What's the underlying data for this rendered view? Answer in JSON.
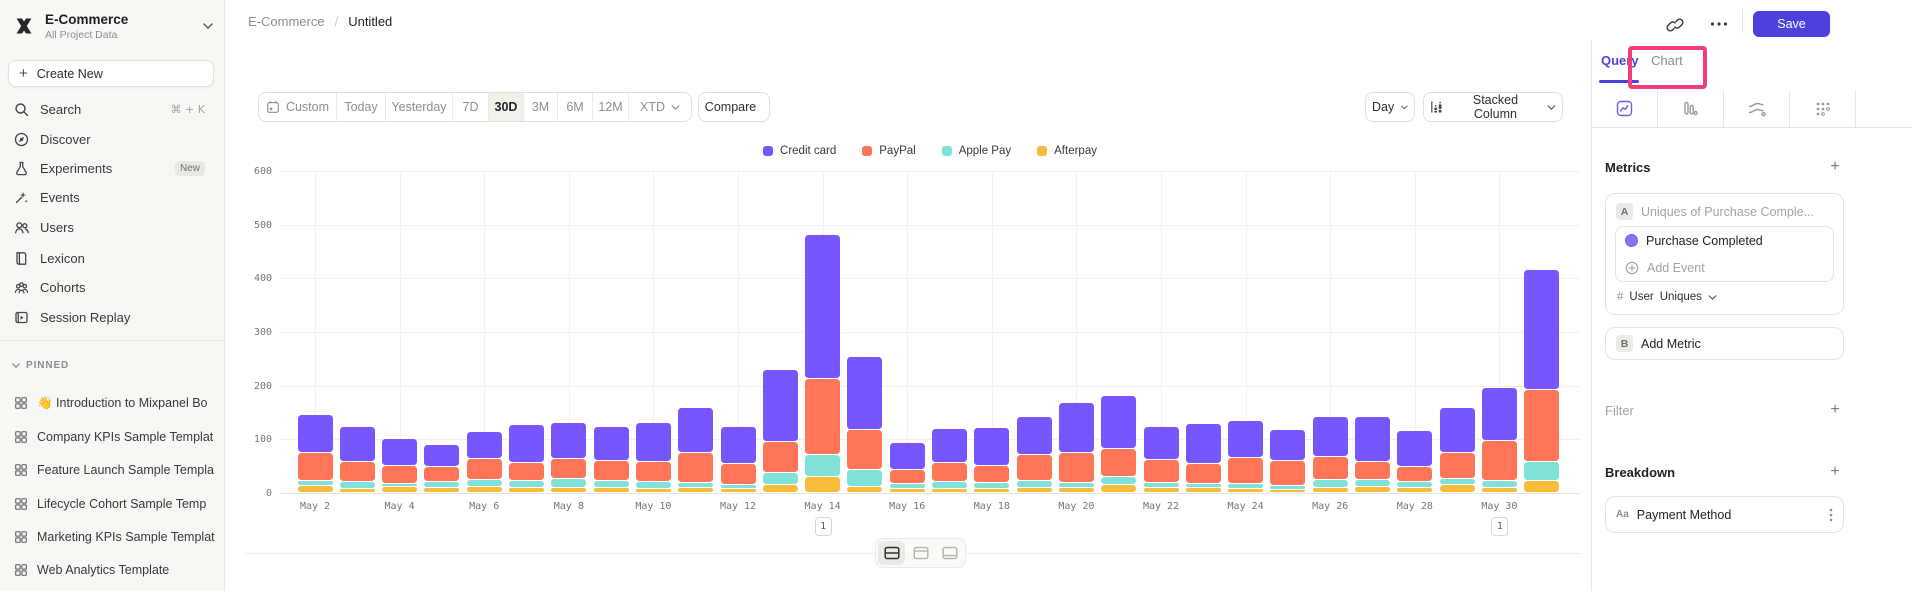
{
  "sidebar": {
    "project": {
      "name": "E-Commerce",
      "subtitle": "All Project Data"
    },
    "create_new": "Create New",
    "nav": [
      {
        "label": "Search",
        "shortcut": "⌘ + K"
      },
      {
        "label": "Discover"
      },
      {
        "label": "Experiments",
        "badge": "New"
      },
      {
        "label": "Events"
      },
      {
        "label": "Users"
      },
      {
        "label": "Lexicon"
      },
      {
        "label": "Cohorts"
      },
      {
        "label": "Session Replay"
      }
    ],
    "pinned_header": "PINNED",
    "pinned": [
      "👋 Introduction to Mixpanel Bo",
      "Company KPIs Sample Templat",
      "Feature Launch Sample Templa",
      "Lifecycle Cohort Sample Temp",
      "Marketing KPIs Sample Templat",
      "Web Analytics Template"
    ]
  },
  "header": {
    "breadcrumb_project": "E-Commerce",
    "breadcrumb_sep": "/",
    "breadcrumb_page": "Untitled",
    "save_label": "Save"
  },
  "ui": {
    "plus": "+"
  },
  "toolbar": {
    "ranges": [
      "Custom",
      "Today",
      "Yesterday",
      "7D",
      "30D",
      "3M",
      "6M",
      "12M",
      "XTD"
    ],
    "active_range": "30D",
    "compare_label": "Compare",
    "granularity_label": "Day",
    "chart_type_label": "Stacked Column"
  },
  "panel": {
    "tab_query": "Query",
    "tab_chart": "Chart",
    "metrics_title": "Metrics",
    "metric_a": {
      "letter": "A",
      "summary": "Uniques of Purchase Comple...",
      "event": "Purchase Completed",
      "add_event": "Add Event",
      "agg_prefix": "#",
      "agg_entity": "User",
      "agg_type": "Uniques"
    },
    "metric_b": {
      "letter": "B",
      "label": "Add Metric"
    },
    "filter_title": "Filter",
    "breakdown_title": "Breakdown",
    "breakdown": {
      "type": "Aa",
      "property": "Payment Method"
    },
    "annotation_color": "#f23c7c"
  },
  "chart_data": {
    "type": "bar",
    "stacked": true,
    "title": "",
    "categories": [
      "May 2",
      "May 3",
      "May 4",
      "May 5",
      "May 6",
      "May 7",
      "May 8",
      "May 9",
      "May 10",
      "May 11",
      "May 12",
      "May 13",
      "May 14",
      "May 15",
      "May 16",
      "May 17",
      "May 18",
      "May 19",
      "May 20",
      "May 21",
      "May 22",
      "May 23",
      "May 24",
      "May 25",
      "May 26",
      "May 27",
      "May 28",
      "May 29",
      "May 30",
      "May 31"
    ],
    "series": [
      {
        "name": "Credit card",
        "color": "#7856ff",
        "values": [
          70,
          65,
          51,
          42,
          51,
          71,
          68,
          63,
          73,
          84,
          69,
          135,
          267,
          136,
          50,
          64,
          71,
          71,
          93,
          98,
          61,
          75,
          70,
          58,
          75,
          84,
          67,
          84,
          99,
          223
        ]
      },
      {
        "name": "PayPal",
        "color": "#ff7557",
        "values": [
          53,
          37,
          33,
          28,
          39,
          34,
          37,
          37,
          37,
          56,
          39,
          58,
          142,
          75,
          27,
          36,
          32,
          49,
          56,
          52,
          44,
          38,
          49,
          46,
          43,
          34,
          29,
          49,
          75,
          134
        ]
      },
      {
        "name": "Apple Pay",
        "color": "#80e1d9",
        "values": [
          9,
          13,
          5,
          10,
          12,
          12,
          16,
          13,
          13,
          10,
          7,
          22,
          41,
          31,
          8,
          12,
          10,
          12,
          10,
          15,
          8,
          6,
          8,
          8,
          14,
          12,
          10,
          11,
          12,
          36
        ]
      },
      {
        "name": "Afterpay",
        "color": "#f8bc3b",
        "values": [
          13,
          8,
          12,
          10,
          12,
          10,
          10,
          10,
          8,
          9,
          8,
          15,
          30,
          12,
          8,
          8,
          8,
          10,
          9,
          15,
          10,
          10,
          8,
          6,
          10,
          12,
          10,
          15,
          10,
          22
        ]
      }
    ],
    "ylim": [
      0,
      600
    ],
    "yticks": [
      0,
      100,
      200,
      300,
      400,
      500,
      600
    ],
    "x_tick_every": 2,
    "legend_position": "top",
    "grid": true,
    "annotations": [
      {
        "category": "May 14",
        "label": "1"
      },
      {
        "category": "May 30",
        "label": "1"
      }
    ]
  }
}
